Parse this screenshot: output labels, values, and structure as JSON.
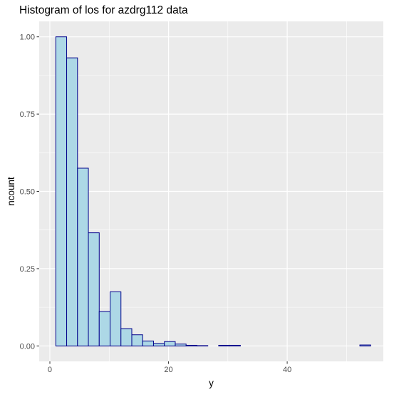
{
  "chart_data": {
    "type": "bar",
    "title": "Histogram of los for azdrg112 data",
    "xlabel": "y",
    "ylabel": "ncount",
    "xlim": [
      -1.8,
      56.2
    ],
    "ylim": [
      -0.05,
      1.05
    ],
    "x_ticks": [
      0,
      20,
      40
    ],
    "y_ticks": [
      0.0,
      0.25,
      0.5,
      0.75,
      1.0
    ],
    "x_tick_labels": [
      "0",
      "20",
      "40"
    ],
    "y_tick_labels": [
      "0.00",
      "0.25",
      "0.50",
      "0.75",
      "1.00"
    ],
    "bin_width": 1.83,
    "bin_starts": [
      1.0,
      2.83,
      4.66,
      6.49,
      8.32,
      10.15,
      11.98,
      13.81,
      15.64,
      17.47,
      19.3,
      21.13,
      22.96,
      24.79,
      26.62,
      28.45,
      30.28,
      32.11,
      33.94,
      35.77,
      37.6,
      39.43,
      41.26,
      43.09,
      44.92,
      46.75,
      48.58,
      50.41,
      52.24
    ],
    "values": [
      1.0,
      0.932,
      0.575,
      0.366,
      0.111,
      0.175,
      0.056,
      0.036,
      0.016,
      0.008,
      0.014,
      0.006,
      0.002,
      0.001,
      0.0,
      0.002,
      0.002,
      0.0,
      0.0,
      0.0,
      0.0,
      0.0,
      0.0,
      0.0,
      0.0,
      0.0,
      0.0,
      0.0,
      0.003
    ],
    "fill_color": "#add8e6",
    "stroke_color": "#00008b",
    "panel_background": "#ebebeb",
    "grid_color": "#ffffff",
    "grid": true,
    "legend": "none"
  }
}
